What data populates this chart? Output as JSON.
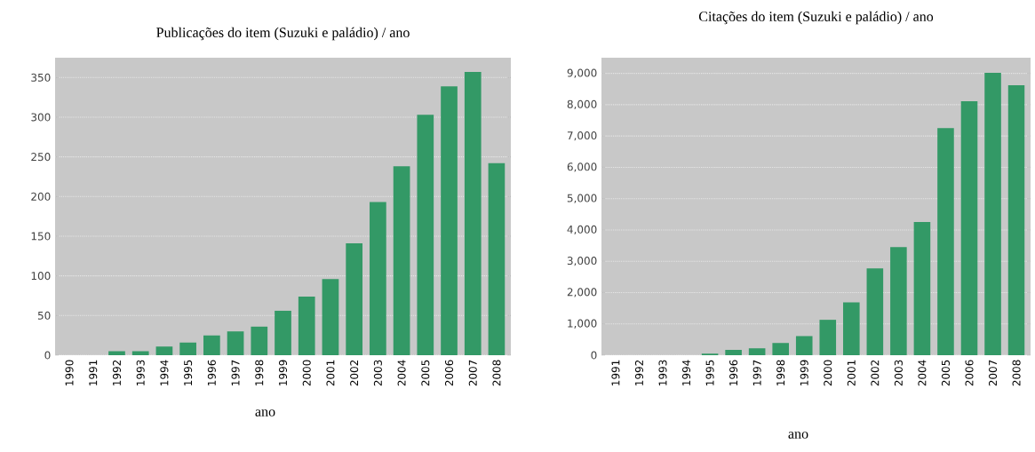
{
  "chart_data": [
    {
      "type": "bar",
      "title": "Publicações do item (Suzuki e paládio) / ano",
      "xlabel": "ano",
      "color": "#339966",
      "grid": "y",
      "categories": [
        "1990",
        "1991",
        "1992",
        "1993",
        "1994",
        "1995",
        "1996",
        "1997",
        "1998",
        "1999",
        "2000",
        "2001",
        "2002",
        "2003",
        "2004",
        "2005",
        "2006",
        "2007",
        "2008"
      ],
      "values": [
        0,
        0,
        5,
        5,
        11,
        16,
        25,
        30,
        36,
        56,
        74,
        96,
        141,
        193,
        238,
        303,
        339,
        357,
        242
      ],
      "ylim": [
        0,
        375
      ],
      "yticks": [
        0,
        50,
        100,
        150,
        200,
        250,
        300,
        350
      ]
    },
    {
      "type": "bar",
      "title": "Citações do item (Suzuki e paládio) / ano",
      "xlabel": "ano",
      "color": "#339966",
      "grid": "y",
      "categories": [
        "1991",
        "1992",
        "1993",
        "1994",
        "1995",
        "1996",
        "1997",
        "1998",
        "1999",
        "2000",
        "2001",
        "2002",
        "2003",
        "2004",
        "2005",
        "2006",
        "2007",
        "2008"
      ],
      "values": [
        0,
        0,
        0,
        0,
        50,
        170,
        220,
        390,
        610,
        1130,
        1690,
        2770,
        3450,
        4250,
        7250,
        8110,
        9020,
        8620
      ],
      "ylim": [
        0,
        9500
      ],
      "yticks": [
        0,
        {
          "value": 1000,
          "label": "1,000"
        },
        {
          "value": 2000,
          "label": "2,000"
        },
        {
          "value": 3000,
          "label": "3,000"
        },
        {
          "value": 4000,
          "label": "4,000"
        },
        {
          "value": 5000,
          "label": "5,000"
        },
        {
          "value": 6000,
          "label": "6,000"
        },
        {
          "value": 7000,
          "label": "7,000"
        },
        {
          "value": 8000,
          "label": "8,000"
        },
        {
          "value": 9000,
          "label": "9,000"
        }
      ]
    }
  ]
}
